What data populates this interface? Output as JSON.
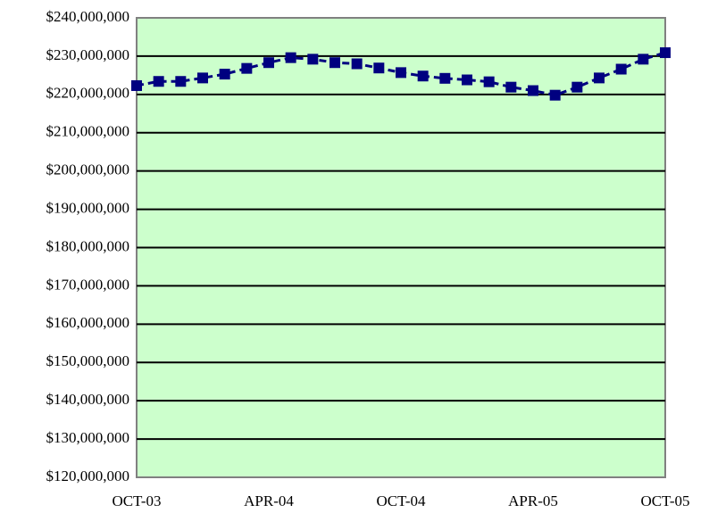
{
  "chart_data": {
    "type": "line",
    "categories": [
      "OCT-03",
      null,
      null,
      null,
      null,
      null,
      "APR-04",
      null,
      null,
      null,
      null,
      null,
      "OCT-04",
      null,
      null,
      null,
      null,
      null,
      "APR-05",
      null,
      null,
      null,
      null,
      null,
      "OCT-05"
    ],
    "series": [
      {
        "color": "#000080",
        "values": [
          222300000,
          223400000,
          223400000,
          224300000,
          225300000,
          226800000,
          228300000,
          229600000,
          229200000,
          228300000,
          228000000,
          226900000,
          225700000,
          224800000,
          224200000,
          223800000,
          223300000,
          221900000,
          221000000,
          219800000,
          221900000,
          224300000,
          226600000,
          229200000,
          230900000
        ]
      }
    ],
    "ylim": [
      120000000,
      240000000
    ],
    "yticks": [
      {
        "value": 120000000,
        "label": "$120,000,000"
      },
      {
        "value": 130000000,
        "label": "$130,000,000"
      },
      {
        "value": 140000000,
        "label": "$140,000,000"
      },
      {
        "value": 150000000,
        "label": "$150,000,000"
      },
      {
        "value": 160000000,
        "label": "$160,000,000"
      },
      {
        "value": 170000000,
        "label": "$170,000,000"
      },
      {
        "value": 180000000,
        "label": "$180,000,000"
      },
      {
        "value": 190000000,
        "label": "$190,000,000"
      },
      {
        "value": 200000000,
        "label": "$200,000,000"
      },
      {
        "value": 210000000,
        "label": "$210,000,000"
      },
      {
        "value": 220000000,
        "label": "$220,000,000"
      },
      {
        "value": 230000000,
        "label": "$230,000,000"
      },
      {
        "value": 240000000,
        "label": "$240,000,000"
      }
    ],
    "grid": true,
    "plot_background": "#ccffcc"
  }
}
